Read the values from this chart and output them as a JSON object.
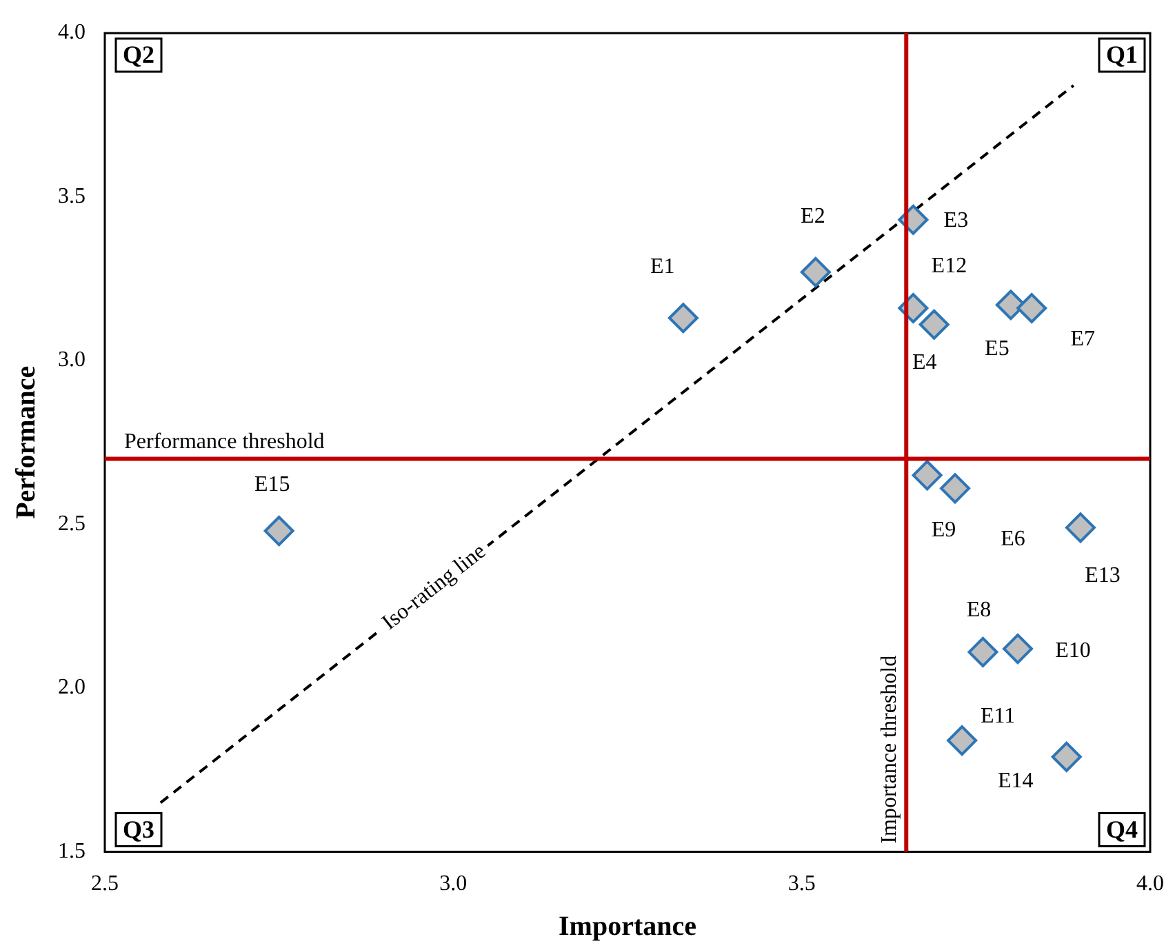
{
  "chart_data": {
    "type": "scatter",
    "xlabel": "Importance",
    "ylabel": "Performance",
    "xlim": [
      2.5,
      4.0
    ],
    "ylim": [
      1.5,
      4.0
    ],
    "xticks": [
      2.5,
      {
        "value": 3,
        "label": "3.0"
      },
      3.5,
      {
        "value": 4,
        "label": "4.0"
      }
    ],
    "yticks": [
      1.5,
      {
        "value": 2,
        "label": "2.0"
      },
      2.5,
      {
        "value": 3,
        "label": "3.0"
      },
      3.5,
      {
        "value": 4,
        "label": "4.0"
      }
    ],
    "marker": "diamond",
    "series": [
      {
        "type": "scatter",
        "color": "#bfbfbf",
        "x": [
          3.33,
          3.52,
          3.66,
          3.66,
          3.69,
          3.8,
          3.83,
          2.75,
          3.68,
          3.72,
          3.9,
          3.76,
          3.81,
          3.73,
          3.88
        ],
        "values": [
          3.13,
          3.27,
          3.43,
          3.16,
          3.11,
          3.17,
          3.16,
          2.48,
          2.65,
          2.61,
          2.49,
          2.11,
          2.12,
          1.84,
          1.79
        ]
      },
      {
        "type": "line",
        "name": "Iso-rating line",
        "color": "#000000",
        "line_style": "dashed",
        "marker": "none",
        "x": [
          2.58,
          3.89
        ],
        "values": [
          1.65,
          3.84
        ]
      }
    ],
    "ref_lines": [
      {
        "axis": "y",
        "value": 2.7,
        "label": "Performance threshold",
        "color": "#c00000"
      },
      {
        "axis": "x",
        "value": 3.65,
        "label": "Importance threshold",
        "color": "#c00000"
      }
    ],
    "annotations": [
      "Q1",
      "Q2",
      "Q3",
      "Q4",
      {
        "text": "E1",
        "x": 3.33,
        "y": 3.13
      },
      {
        "text": "E2",
        "x": 3.52,
        "y": 3.27
      },
      {
        "text": "E3",
        "x": 3.66,
        "y": 3.43
      },
      {
        "text": "E12",
        "x": 3.66,
        "y": 3.16
      },
      {
        "text": "E4",
        "x": 3.69,
        "y": 3.11
      },
      {
        "text": "E5",
        "x": 3.8,
        "y": 3.17
      },
      {
        "text": "E7",
        "x": 3.83,
        "y": 3.16
      },
      {
        "text": "E15",
        "x": 2.75,
        "y": 2.48
      },
      {
        "text": "E9",
        "x": 3.68,
        "y": 2.65
      },
      {
        "text": "E6",
        "x": 3.72,
        "y": 2.61
      },
      {
        "text": "E13",
        "x": 3.9,
        "y": 2.49
      },
      {
        "text": "E8",
        "x": 3.76,
        "y": 2.11
      },
      {
        "text": "E10",
        "x": 3.81,
        "y": 2.12
      },
      {
        "text": "E11",
        "x": 3.73,
        "y": 1.84
      },
      {
        "text": "E14",
        "x": 3.88,
        "y": 1.79
      }
    ]
  }
}
